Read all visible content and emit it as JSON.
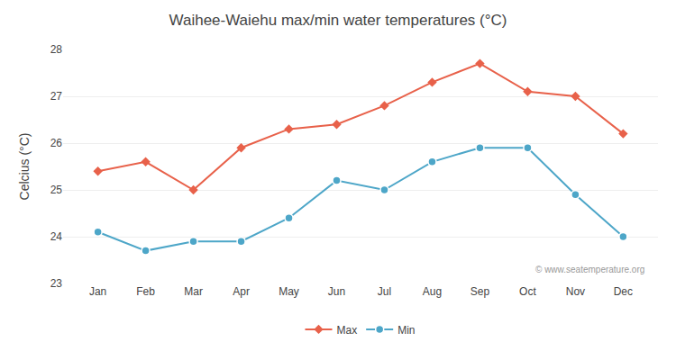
{
  "chart_data": {
    "type": "line",
    "title": "Waihee-Waiehu max/min water temperatures (°C)",
    "ylabel": "Celcius (°C)",
    "categories": [
      "Jan",
      "Feb",
      "Mar",
      "Apr",
      "May",
      "Jun",
      "Jul",
      "Aug",
      "Sep",
      "Oct",
      "Nov",
      "Dec"
    ],
    "series": [
      {
        "name": "Max",
        "color": "#e8614a",
        "marker": "diamond",
        "values": [
          25.4,
          25.6,
          25.0,
          25.9,
          26.3,
          26.4,
          26.8,
          27.3,
          27.7,
          27.1,
          27.0,
          26.2
        ]
      },
      {
        "name": "Min",
        "color": "#4da6c8",
        "marker": "circle",
        "values": [
          24.1,
          23.7,
          23.9,
          23.9,
          24.4,
          25.2,
          25.0,
          25.6,
          25.9,
          25.9,
          24.9,
          24.0
        ]
      }
    ],
    "ylim": [
      23,
      28
    ],
    "yticks": [
      23,
      24,
      25,
      26,
      27,
      28
    ],
    "grid": true,
    "legend": "bottom",
    "annotations": [
      "© www.seatemperature.org"
    ]
  }
}
